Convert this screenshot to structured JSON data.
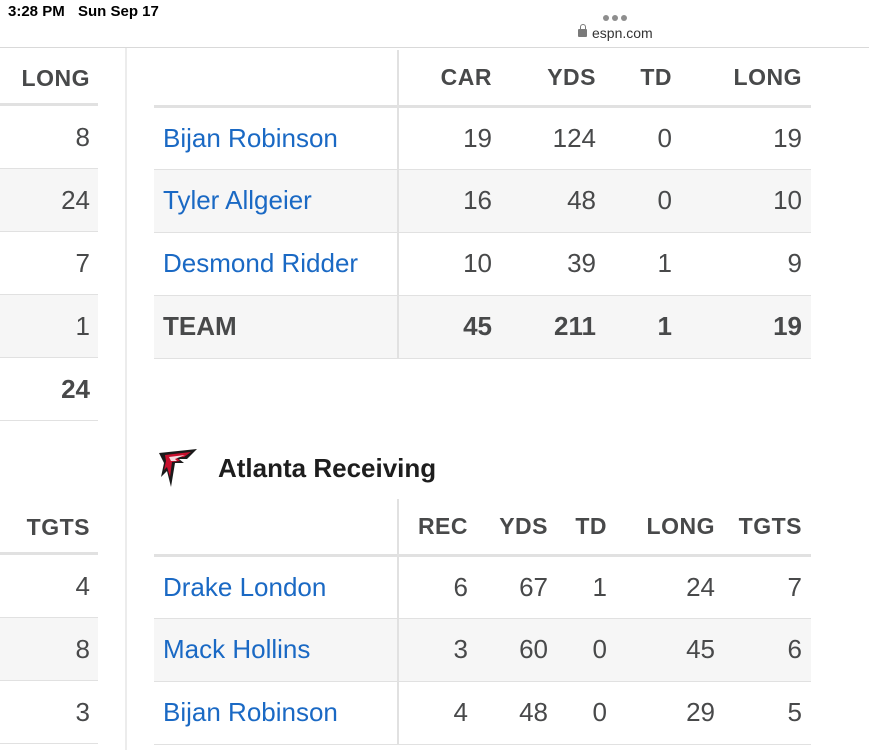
{
  "status_bar": {
    "time": "3:28 PM",
    "date": "Sun Sep 17",
    "url": "espn.com"
  },
  "left_rushing": {
    "header": "LONG",
    "values": [
      "8",
      "24",
      "7",
      "1",
      "24"
    ]
  },
  "left_receiving": {
    "header": "TGTS",
    "values": [
      "4",
      "8",
      "3"
    ]
  },
  "rushing": {
    "headers": [
      "CAR",
      "YDS",
      "TD",
      "LONG"
    ],
    "rows": [
      {
        "name": "Bijan Robinson",
        "car": "19",
        "yds": "124",
        "td": "0",
        "long": "19"
      },
      {
        "name": "Tyler Allgeier",
        "car": "16",
        "yds": "48",
        "td": "0",
        "long": "10"
      },
      {
        "name": "Desmond Ridder",
        "car": "10",
        "yds": "39",
        "td": "1",
        "long": "9"
      }
    ],
    "team": {
      "name": "TEAM",
      "car": "45",
      "yds": "211",
      "td": "1",
      "long": "19"
    }
  },
  "receiving": {
    "title": "Atlanta Receiving",
    "logo_icon": "atlanta-falcons-logo-icon",
    "headers": [
      "REC",
      "YDS",
      "TD",
      "LONG",
      "TGTS"
    ],
    "rows": [
      {
        "name": "Drake London",
        "rec": "6",
        "yds": "67",
        "td": "1",
        "long": "24",
        "tgts": "7"
      },
      {
        "name": "Mack Hollins",
        "rec": "3",
        "yds": "60",
        "td": "0",
        "long": "45",
        "tgts": "6"
      },
      {
        "name": "Bijan Robinson",
        "rec": "4",
        "yds": "48",
        "td": "0",
        "long": "29",
        "tgts": "5"
      }
    ]
  },
  "colors": {
    "link": "#1a69c4",
    "text": "#48494a",
    "row_alt": "#f6f6f6",
    "border": "#e1e1e1"
  }
}
